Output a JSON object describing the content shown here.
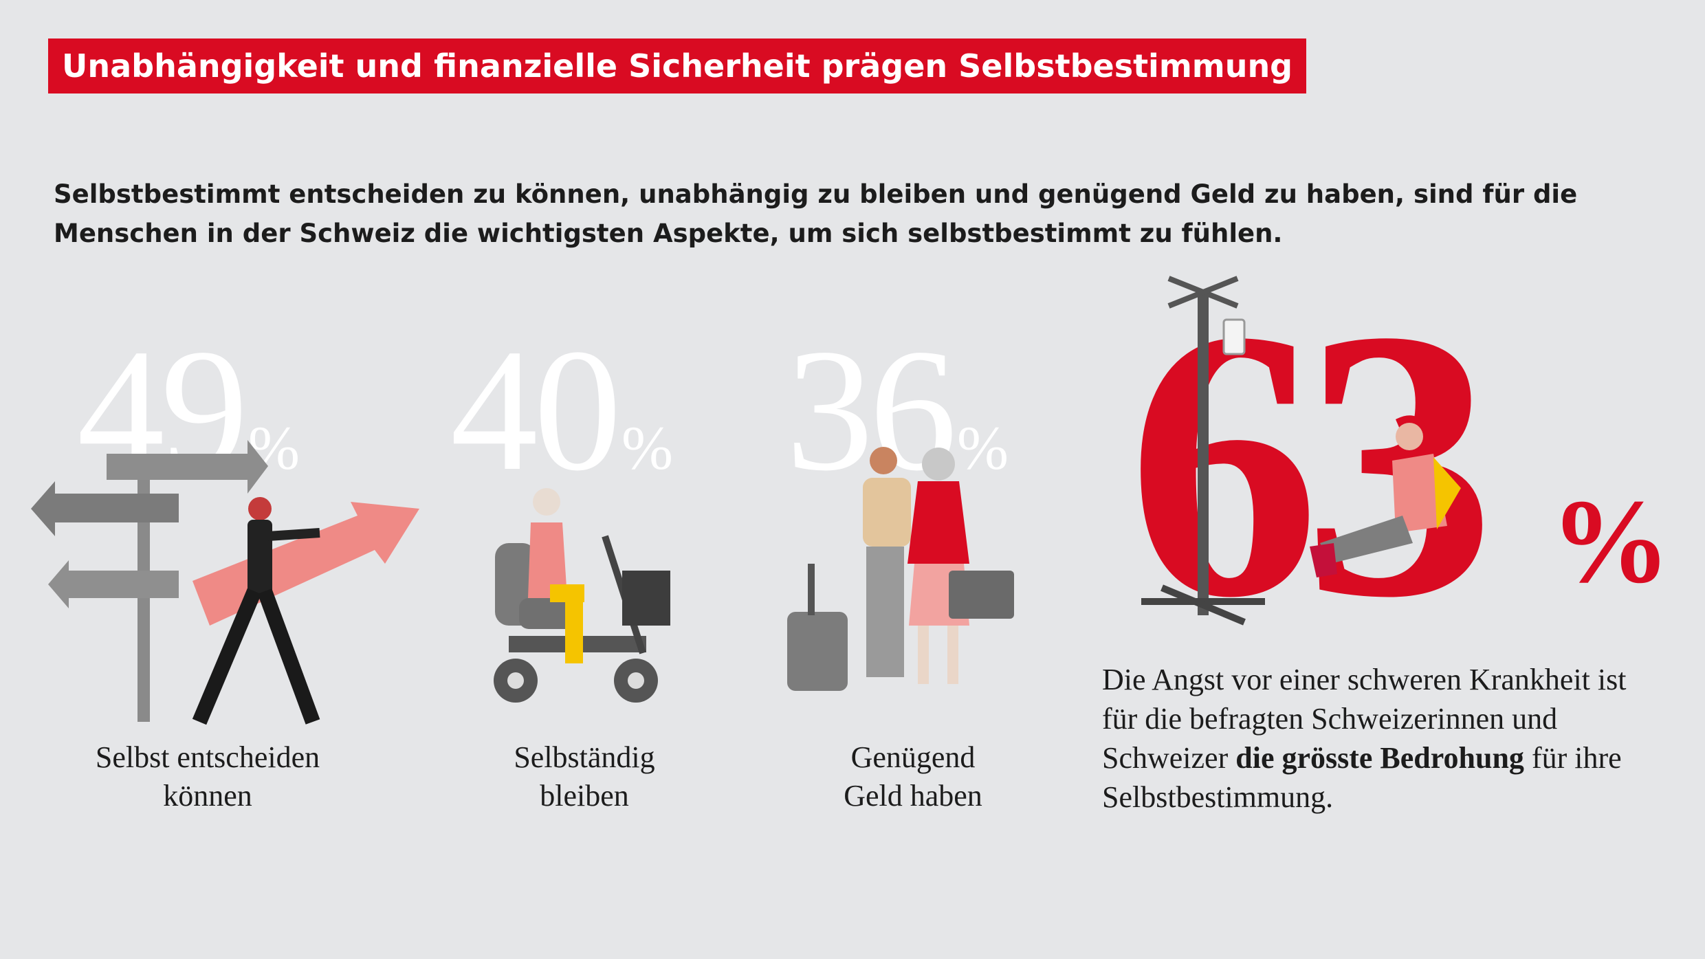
{
  "title": "Unabhängigkeit und finanzielle Sicherheit prägen Selbstbestimmung",
  "intro": "Selbstbestimmt entscheiden zu können, unabhängig zu bleiben und genügend Geld zu haben, sind für die Menschen in der Schweiz die wichtigsten Aspekte, um sich selbstbestimmt zu fühlen.",
  "chart_data": {
    "type": "bar",
    "title": "Unabhängigkeit und finanzielle Sicherheit prägen Selbstbestimmung",
    "unit": "%",
    "categories": [
      "Selbst entscheiden können",
      "Selbständig bleiben",
      "Genügend Geld haben"
    ],
    "values": [
      49,
      40,
      36
    ],
    "highlight": {
      "value": 63,
      "unit": "%",
      "text_before": "Die Angst vor einer schweren Krankheit ist für die befragten Schweizerinnen und Schweizer ",
      "text_bold": "die grösste Bedrohung",
      "text_after": " für ihre Selbstbestimmung."
    }
  },
  "stats": [
    {
      "value": "49",
      "unit": "%",
      "label_line1": "Selbst entscheiden",
      "label_line2": "können"
    },
    {
      "value": "40",
      "unit": "%",
      "label_line1": "Selbständig",
      "label_line2": "bleiben"
    },
    {
      "value": "36",
      "unit": "%",
      "label_line1": "Genügend",
      "label_line2": "Geld haben"
    }
  ],
  "colors": {
    "accent": "#d90b22",
    "background": "#e5e6e8",
    "text": "#1c1c1c",
    "grey": "#8a8a8a",
    "pink": "#ef8a86",
    "yellow": "#f5c400"
  },
  "icons": [
    "signpost-icon",
    "businessman-arrow-icon",
    "mobility-scooter-icon",
    "elderly-couple-icon",
    "suitcase-icon",
    "iv-drip-icon",
    "patient-icon"
  ]
}
